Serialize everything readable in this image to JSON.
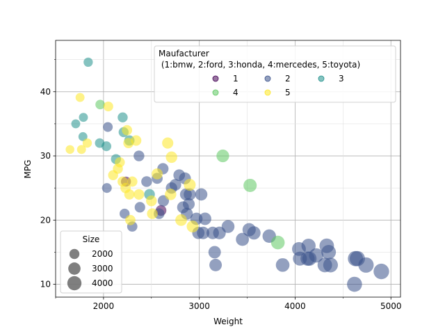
{
  "chart_data": {
    "type": "scatter",
    "xlabel": "Weight",
    "ylabel": "MPG",
    "xlim": [
      1500,
      5100
    ],
    "ylim": [
      8,
      48
    ],
    "x_ticks": [
      2000,
      3000,
      4000,
      5000
    ],
    "y_ticks": [
      10,
      20,
      30,
      40
    ],
    "x_minor_ticks": [
      1500,
      2500,
      3500,
      4500
    ],
    "y_minor_ticks": [
      15,
      25,
      35,
      45
    ],
    "grid": true,
    "marker_alpha": 0.55,
    "legend": {
      "title_line1": "Maufacturer",
      "title_line2": " (1:bmw, 2:ford, 3:honda, 4:mercedes, 5:toyota)",
      "placement": "top-right",
      "entries": [
        {
          "label": "1",
          "color": "#440154"
        },
        {
          "label": "2",
          "color": "#3b528b"
        },
        {
          "label": "3",
          "color": "#21918c"
        },
        {
          "label": "4",
          "color": "#5ec962"
        },
        {
          "label": "5",
          "color": "#fde725"
        }
      ]
    },
    "size_legend": {
      "title": "Size",
      "placement": "bottom-left",
      "entries": [
        {
          "label": "2000",
          "value": 2000
        },
        {
          "label": "3000",
          "value": 3000
        },
        {
          "label": "4000",
          "value": 4000
        }
      ]
    },
    "series": [
      {
        "name": "1",
        "color": "#440154",
        "points": [
          [
            2234,
            26,
            2000
          ],
          [
            2600,
            21.5,
            2300
          ]
        ]
      },
      {
        "name": "2",
        "color": "#3b528b",
        "points": [
          [
            2045,
            34.5,
            1900
          ],
          [
            2035,
            25,
            1900
          ],
          [
            2220,
            21,
            2000
          ],
          [
            2300,
            19,
            2100
          ],
          [
            2380,
            22,
            2200
          ],
          [
            2370,
            30,
            2300
          ],
          [
            2450,
            26,
            2300
          ],
          [
            2580,
            21,
            2300
          ],
          [
            2560,
            26.5,
            2400
          ],
          [
            2620,
            28,
            2500
          ],
          [
            2625,
            23,
            2500
          ],
          [
            2710,
            25,
            2600
          ],
          [
            2750,
            25.5,
            2700
          ],
          [
            2790,
            27,
            2700
          ],
          [
            2850,
            26.5,
            2800
          ],
          [
            2830,
            22,
            2800
          ],
          [
            2860,
            24,
            2800
          ],
          [
            2870,
            21,
            2800
          ],
          [
            2890,
            22.5,
            2800
          ],
          [
            2900,
            24,
            2900
          ],
          [
            2970,
            20.2,
            3000
          ],
          [
            2990,
            18,
            3000
          ],
          [
            3020,
            24,
            3000
          ],
          [
            3040,
            18,
            3100
          ],
          [
            3060,
            20.2,
            3100
          ],
          [
            3140,
            18,
            3100
          ],
          [
            3160,
            15,
            3100
          ],
          [
            3170,
            13,
            3100
          ],
          [
            3210,
            18,
            3200
          ],
          [
            3300,
            19,
            3300
          ],
          [
            3450,
            17,
            3400
          ],
          [
            3520,
            18.5,
            3500
          ],
          [
            3570,
            18,
            3500
          ],
          [
            3730,
            17.5,
            3600
          ],
          [
            3870,
            13,
            3700
          ],
          [
            4040,
            15.5,
            3800
          ],
          [
            4050,
            14,
            3900
          ],
          [
            4130,
            14,
            4000
          ],
          [
            4150,
            14,
            4000
          ],
          [
            4140,
            16,
            4000
          ],
          [
            4220,
            14.5,
            4100
          ],
          [
            4310,
            13,
            4200
          ],
          [
            4330,
            16,
            4200
          ],
          [
            4350,
            15,
            4200
          ],
          [
            4370,
            13,
            4300
          ],
          [
            4620,
            10,
            4500
          ],
          [
            4630,
            14,
            4600
          ],
          [
            4650,
            14,
            4600
          ],
          [
            4740,
            13,
            4700
          ],
          [
            4900,
            12,
            4800
          ]
        ]
      },
      {
        "name": "3",
        "color": "#21918c",
        "points": [
          [
            1840,
            44.6,
            1700
          ],
          [
            1710,
            35,
            1600
          ],
          [
            1790,
            36,
            1600
          ],
          [
            1785,
            33,
            1600
          ],
          [
            1960,
            32,
            1800
          ],
          [
            2030,
            31.5,
            1900
          ],
          [
            2130,
            29.5,
            2000
          ],
          [
            2200,
            36,
            2000
          ],
          [
            2210,
            33.7,
            2000
          ],
          [
            2270,
            32.4,
            2100
          ],
          [
            2480,
            24,
            2300
          ]
        ]
      },
      {
        "name": "4",
        "color": "#5ec962",
        "points": [
          [
            1965,
            38,
            1800
          ],
          [
            3245,
            30,
            3200
          ],
          [
            3530,
            25.4,
            3500
          ],
          [
            3820,
            16.5,
            3700
          ]
        ]
      },
      {
        "name": "5",
        "color": "#fde725",
        "points": [
          [
            1650,
            31,
            1500
          ],
          [
            1755,
            39.1,
            1600
          ],
          [
            1770,
            31,
            1600
          ],
          [
            1830,
            32,
            1700
          ],
          [
            2050,
            37.7,
            1900
          ],
          [
            2100,
            27,
            2000
          ],
          [
            2150,
            28,
            2000
          ],
          [
            2170,
            29,
            2000
          ],
          [
            2200,
            26,
            2100
          ],
          [
            2230,
            25,
            2100
          ],
          [
            2245,
            34,
            2100
          ],
          [
            2270,
            24,
            2100
          ],
          [
            2260,
            32,
            2100
          ],
          [
            2280,
            20,
            2100
          ],
          [
            2300,
            26,
            2100
          ],
          [
            2340,
            32.4,
            2200
          ],
          [
            2370,
            24,
            2200
          ],
          [
            2500,
            23,
            2300
          ],
          [
            2510,
            21,
            2300
          ],
          [
            2560,
            27.2,
            2400
          ],
          [
            2670,
            32,
            2500
          ],
          [
            2700,
            24,
            2600
          ],
          [
            2710,
            29.8,
            2600
          ],
          [
            2810,
            20,
            2700
          ],
          [
            2900,
            25.5,
            2800
          ],
          [
            2930,
            19,
            2800
          ]
        ]
      }
    ]
  }
}
